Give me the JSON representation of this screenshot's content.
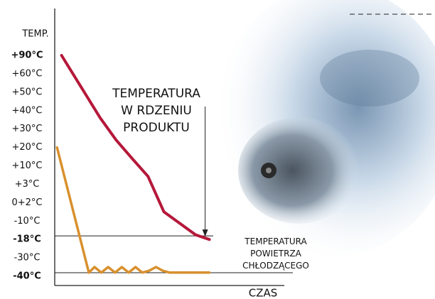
{
  "chart_data": {
    "type": "line",
    "y_label": "TEMP.",
    "x_label": "CZAS",
    "xlim": [
      0,
      100
    ],
    "yticks": [
      {
        "value": 90,
        "label": "+90°C",
        "bold": true
      },
      {
        "value": 60,
        "label": "+60°C"
      },
      {
        "value": 50,
        "label": "+50°C"
      },
      {
        "value": 40,
        "label": "+40°C"
      },
      {
        "value": 30,
        "label": "+30°C"
      },
      {
        "value": 20,
        "label": "+20°C"
      },
      {
        "value": 10,
        "label": "+10°C"
      },
      {
        "value": 3,
        "label": "+3°C"
      },
      {
        "value": 2,
        "label": "0+2°C"
      },
      {
        "value": -10,
        "label": "-10°C"
      },
      {
        "value": -18,
        "label": "-18°C",
        "bold": true
      },
      {
        "value": -30,
        "label": "-30°C"
      },
      {
        "value": -40,
        "label": "-40°C",
        "bold": true
      }
    ],
    "reference_lines": [
      -18,
      -40
    ],
    "series": [
      {
        "name": "TEMPERATURA W RDZENIU PRODUKTU",
        "color": "#b5183a",
        "x": [
          3,
          8,
          14,
          20,
          27,
          34,
          41,
          48,
          55,
          62,
          68
        ],
        "values": [
          90,
          60,
          48,
          36,
          24,
          14,
          6,
          -4,
          -11,
          -16,
          -18
        ]
      },
      {
        "name": "TEMPERATURA POWIETRZA CHŁODZĄCEGO",
        "color": "#d8902e",
        "x": [
          1,
          15,
          17.5,
          20.5,
          23.5,
          26.5,
          29.5,
          32.5,
          35.5,
          38.5,
          41.5,
          44.5,
          47.5,
          50.5,
          54,
          58,
          62,
          68
        ],
        "values": [
          20,
          -38,
          -35,
          -38,
          -35,
          -38,
          -35,
          -38,
          -35,
          -38,
          -37,
          -35,
          -37,
          -38,
          -38,
          -38,
          -38,
          -38
        ]
      }
    ]
  }
}
